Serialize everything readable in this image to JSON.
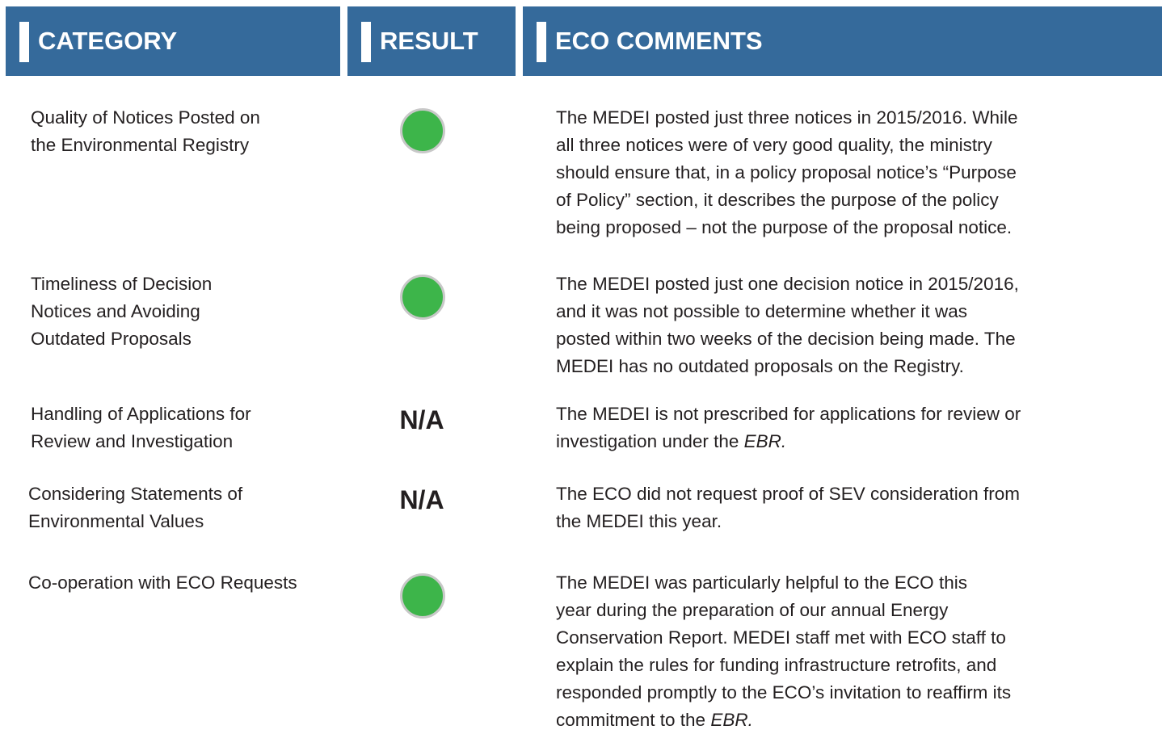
{
  "header": {
    "category": "CATEGORY",
    "result": "RESULT",
    "comments": "ECO COMMENTS"
  },
  "rows": [
    {
      "category": [
        "Quality of Notices Posted on",
        "the Environmental Registry"
      ],
      "result": {
        "type": "circle",
        "color": "#3db54a"
      },
      "comment": [
        "The MEDEI posted just three notices in 2015/2016. While",
        "all three notices were of very good quality, the ministry",
        "should ensure that, in a policy proposal notice’s “Purpose",
        "of Policy” section, it describes the purpose of the policy",
        "being proposed – not the purpose of the proposal notice."
      ]
    },
    {
      "category": [
        "Timeliness of Decision",
        "Notices and Avoiding",
        "Outdated Proposals"
      ],
      "result": {
        "type": "circle",
        "color": "#3db54a"
      },
      "comment": [
        "The MEDEI posted just one decision notice in 2015/2016,",
        "and it was not possible to determine whether it was",
        "posted within two weeks of the decision being made. The",
        "MEDEI has no outdated proposals on the Registry."
      ]
    },
    {
      "category": [
        "Handling of Applications for",
        "Review and Investigation"
      ],
      "result": {
        "type": "text",
        "label": "N/A"
      },
      "comment": [
        "The MEDEI is not prescribed for applications for review or",
        "investigation under the "
      ],
      "comment_em": "EBR."
    },
    {
      "category": [
        "Considering Statements of",
        "Environmental Values"
      ],
      "result": {
        "type": "text",
        "label": "N/A"
      },
      "comment": [
        "The ECO did not request proof of SEV consideration from",
        "the MEDEI this year."
      ]
    },
    {
      "category": [
        "Co-operation with ECO Requests"
      ],
      "result": {
        "type": "circle",
        "color": "#3db54a"
      },
      "comment": [
        "The MEDEI was particularly helpful to the ECO this",
        "year during the preparation of our annual Energy",
        "Conservation Report. MEDEI staff met with ECO staff to",
        "explain the rules for funding infrastructure retrofits, and",
        "responded promptly to the ECO’s invitation to reaffirm its",
        "commitment to the "
      ],
      "comment_em": "EBR."
    }
  ]
}
